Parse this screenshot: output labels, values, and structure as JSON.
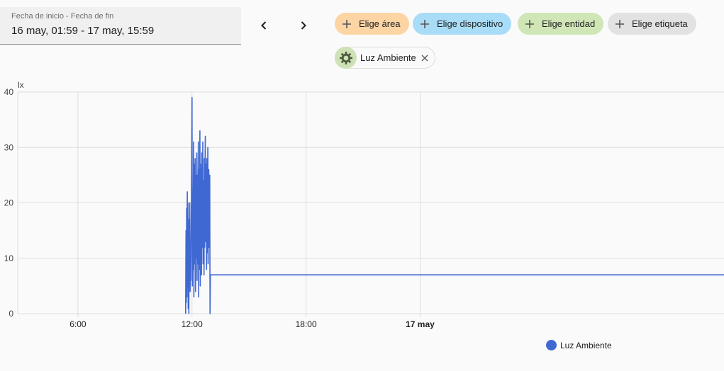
{
  "date_range": {
    "label": "Fecha de inicio - Fecha de fin",
    "value": "16 may, 01:59 - 17 may, 15:59"
  },
  "filters": [
    {
      "label": "Elige área",
      "color": "#fdd5a4"
    },
    {
      "label": "Elige dispositivo",
      "color": "#a8dcf7"
    },
    {
      "label": "Elige entidad",
      "color": "#d0e6b6"
    },
    {
      "label": "Elige etiqueta",
      "color": "#e2e2e2"
    }
  ],
  "selected_entity": {
    "label": "Luz Ambiente",
    "icon": "sun-icon"
  },
  "colors": {
    "series": "#4068d2",
    "grid": "#dedede"
  },
  "chart_data": {
    "type": "line",
    "ylabel": "lx",
    "ylim": [
      0,
      40
    ],
    "yticks": [
      "0",
      "10",
      "20",
      "30",
      "40"
    ],
    "xlim": [
      "16 may 02:50",
      "17 may 15:59"
    ],
    "xticks": [
      {
        "label": "6:00",
        "value": "16 may 06:00",
        "bold": false
      },
      {
        "label": "12:00",
        "value": "16 may 12:00",
        "bold": false
      },
      {
        "label": "18:00",
        "value": "16 may 18:00",
        "bold": false
      },
      {
        "label": "17 may",
        "value": "17 may 00:00",
        "bold": true
      }
    ],
    "series": [
      {
        "name": "Luz Ambiente",
        "points": [
          [
            "16 may 11:40",
            0
          ],
          [
            "16 may 11:41",
            15
          ],
          [
            "16 may 11:42",
            2
          ],
          [
            "16 may 11:43",
            19
          ],
          [
            "16 may 11:44",
            3
          ],
          [
            "16 may 11:45",
            22
          ],
          [
            "16 may 11:46",
            5
          ],
          [
            "16 may 11:47",
            20
          ],
          [
            "16 may 11:48",
            1
          ],
          [
            "16 may 11:49",
            17
          ],
          [
            "16 may 11:50",
            0
          ],
          [
            "16 may 11:51",
            12
          ],
          [
            "16 may 11:53",
            20
          ],
          [
            "16 may 11:54",
            4
          ],
          [
            "16 may 11:55",
            11
          ],
          [
            "16 may 11:56",
            6
          ],
          [
            "16 may 11:58",
            20
          ],
          [
            "16 may 12:00",
            39
          ],
          [
            "16 may 12:01",
            5
          ],
          [
            "16 may 12:02",
            22
          ],
          [
            "16 may 12:03",
            8
          ],
          [
            "16 may 12:05",
            31
          ],
          [
            "16 may 12:06",
            3
          ],
          [
            "16 may 12:07",
            27
          ],
          [
            "16 may 12:08",
            9
          ],
          [
            "16 may 12:10",
            28
          ],
          [
            "16 may 12:11",
            4
          ],
          [
            "16 may 12:12",
            25
          ],
          [
            "16 may 12:14",
            10
          ],
          [
            "16 may 12:15",
            29
          ],
          [
            "16 may 12:16",
            6
          ],
          [
            "16 may 12:17",
            25
          ],
          [
            "16 may 12:18",
            9
          ],
          [
            "16 may 12:20",
            31
          ],
          [
            "16 may 12:21",
            3
          ],
          [
            "16 may 12:22",
            26
          ],
          [
            "16 may 12:23",
            8
          ],
          [
            "16 may 12:25",
            33
          ],
          [
            "16 may 12:26",
            5
          ],
          [
            "16 may 12:27",
            27
          ],
          [
            "16 may 12:28",
            10
          ],
          [
            "16 may 12:29",
            26
          ],
          [
            "16 may 12:30",
            7
          ],
          [
            "16 may 12:31",
            29
          ],
          [
            "16 may 12:33",
            12
          ],
          [
            "16 may 12:34",
            31
          ],
          [
            "16 may 12:35",
            9
          ],
          [
            "16 may 12:36",
            24
          ],
          [
            "16 may 12:38",
            7
          ],
          [
            "16 may 12:39",
            28
          ],
          [
            "16 may 12:40",
            12
          ],
          [
            "16 may 12:42",
            32
          ],
          [
            "16 may 12:43",
            13
          ],
          [
            "16 may 12:44",
            27
          ],
          [
            "16 may 12:46",
            8
          ],
          [
            "16 may 12:47",
            28
          ],
          [
            "16 may 12:48",
            11
          ],
          [
            "16 may 12:50",
            30
          ],
          [
            "16 may 12:51",
            9
          ],
          [
            "16 may 12:53",
            26
          ],
          [
            "16 may 12:54",
            12
          ],
          [
            "16 may 12:56",
            25
          ],
          [
            "16 may 12:57",
            0
          ],
          [
            "16 may 12:58",
            7
          ],
          [
            "17 may 15:59",
            7
          ]
        ]
      }
    ]
  }
}
